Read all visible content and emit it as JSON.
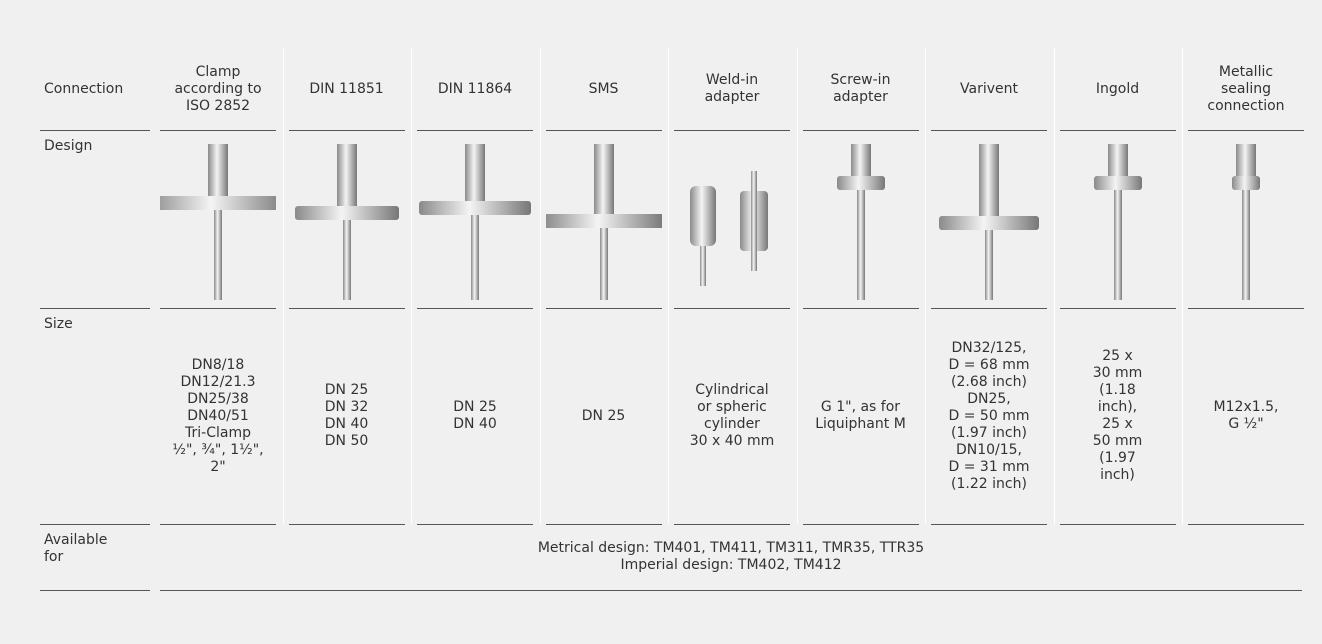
{
  "table": {
    "row_labels": [
      "Connection",
      "Design",
      "Size",
      "Available\nfor"
    ],
    "columns": [
      "Clamp\naccording to\nISO 2852",
      "DIN 11851",
      "DIN 11864",
      "SMS",
      "Weld-in\nadapter",
      "Screw-in\nadapter",
      "Varivent",
      "Ingold",
      "Metallic\nsealing\nconnection"
    ],
    "sizes": [
      "DN8/18\nDN12/21.3\nDN25/38\nDN40/51\nTri-Clamp\n½\", ¾\", 1½\",\n2\"",
      "DN 25\nDN 32\nDN 40\nDN 50",
      "DN 25\nDN 40",
      "DN 25",
      "Cylindrical\nor spheric\ncylinder\n30 x 40 mm",
      "G 1\", as for\nLiquiphant M",
      "DN32/125,\nD = 68 mm\n(2.68 inch)\nDN25,\nD = 50 mm\n(1.97 inch)\nDN10/15,\nD = 31 mm\n(1.22 inch)",
      "25 x\n30 mm\n(1.18\ninch),\n25 x\n50 mm\n(1.97\ninch)",
      "M12x1.5,\nG ½\""
    ],
    "available": [
      "Metrical design: TM401, TM411, TM311, TMR35, TTR35",
      "Imperial design: TM402, TM412"
    ]
  }
}
